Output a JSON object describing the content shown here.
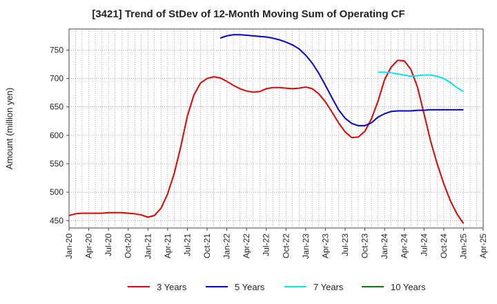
{
  "chart_data": {
    "type": "line",
    "title": "[3421]  Trend of StDev of 12-Month Moving Sum of Operating CF",
    "ylabel": "Amount (million yen)",
    "xlabel": "",
    "ylim": [
      437,
      787
    ],
    "yticks": [
      450,
      500,
      550,
      600,
      650,
      700,
      750
    ],
    "x_tick_labels": [
      "Jan-20",
      "Apr-20",
      "Jul-20",
      "Oct-20",
      "Jan-21",
      "Apr-21",
      "Jul-21",
      "Oct-21",
      "Jan-22",
      "Apr-22",
      "Jul-22",
      "Oct-22",
      "Jan-23",
      "Apr-23",
      "Jul-23",
      "Oct-23",
      "Jan-24",
      "Apr-24",
      "Jul-24",
      "Oct-24",
      "Jan-25",
      "Apr-25"
    ],
    "grid": true,
    "legend_position": "bottom",
    "series": [
      {
        "name": "3 Years",
        "color": "#e00000",
        "points": [
          [
            "Jan-20",
            459
          ],
          [
            "Feb-20",
            462
          ],
          [
            "Mar-20",
            463
          ],
          [
            "Apr-20",
            463
          ],
          [
            "May-20",
            463
          ],
          [
            "Jun-20",
            463
          ],
          [
            "Jul-20",
            464
          ],
          [
            "Aug-20",
            464
          ],
          [
            "Sep-20",
            464
          ],
          [
            "Oct-20",
            463
          ],
          [
            "Nov-20",
            462
          ],
          [
            "Dec-20",
            460
          ],
          [
            "Jan-21",
            456
          ],
          [
            "Feb-21",
            459
          ],
          [
            "Mar-21",
            472
          ],
          [
            "Apr-21",
            497
          ],
          [
            "May-21",
            533
          ],
          [
            "Jun-21",
            580
          ],
          [
            "Jul-21",
            634
          ],
          [
            "Aug-21",
            671
          ],
          [
            "Sep-21",
            692
          ],
          [
            "Oct-21",
            700
          ],
          [
            "Nov-21",
            703
          ],
          [
            "Dec-21",
            701
          ],
          [
            "Jan-22",
            695
          ],
          [
            "Feb-22",
            688
          ],
          [
            "Mar-22",
            682
          ],
          [
            "Apr-22",
            678
          ],
          [
            "May-22",
            676
          ],
          [
            "Jun-22",
            677
          ],
          [
            "Jul-22",
            682
          ],
          [
            "Aug-22",
            684
          ],
          [
            "Sep-22",
            684
          ],
          [
            "Oct-22",
            683
          ],
          [
            "Nov-22",
            682
          ],
          [
            "Dec-22",
            683
          ],
          [
            "Jan-23",
            685
          ],
          [
            "Feb-23",
            682
          ],
          [
            "Mar-23",
            673
          ],
          [
            "Apr-23",
            659
          ],
          [
            "May-23",
            641
          ],
          [
            "Jun-23",
            622
          ],
          [
            "Jul-23",
            606
          ],
          [
            "Aug-23",
            596
          ],
          [
            "Sep-23",
            597
          ],
          [
            "Oct-23",
            607
          ],
          [
            "Nov-23",
            629
          ],
          [
            "Dec-23",
            660
          ],
          [
            "Jan-24",
            698
          ],
          [
            "Feb-24",
            720
          ],
          [
            "Mar-24",
            732
          ],
          [
            "Apr-24",
            731
          ],
          [
            "May-24",
            716
          ],
          [
            "Jun-24",
            685
          ],
          [
            "Jul-24",
            638
          ],
          [
            "Aug-24",
            590
          ],
          [
            "Sep-24",
            550
          ],
          [
            "Oct-24",
            515
          ],
          [
            "Nov-24",
            485
          ],
          [
            "Dec-24",
            462
          ],
          [
            "Jan-25",
            445
          ]
        ]
      },
      {
        "name": "5 Years",
        "color": "#0000cc",
        "points": [
          [
            "Dec-21",
            771
          ],
          [
            "Jan-22",
            775
          ],
          [
            "Feb-22",
            777
          ],
          [
            "Mar-22",
            777
          ],
          [
            "Apr-22",
            776
          ],
          [
            "May-22",
            775
          ],
          [
            "Jun-22",
            774
          ],
          [
            "Jul-22",
            773
          ],
          [
            "Aug-22",
            771
          ],
          [
            "Sep-22",
            768
          ],
          [
            "Oct-22",
            764
          ],
          [
            "Nov-22",
            759
          ],
          [
            "Dec-22",
            752
          ],
          [
            "Jan-23",
            741
          ],
          [
            "Feb-23",
            727
          ],
          [
            "Mar-23",
            709
          ],
          [
            "Apr-23",
            688
          ],
          [
            "May-23",
            666
          ],
          [
            "Jun-23",
            645
          ],
          [
            "Jul-23",
            630
          ],
          [
            "Aug-23",
            621
          ],
          [
            "Sep-23",
            617
          ],
          [
            "Oct-23",
            617
          ],
          [
            "Nov-23",
            622
          ],
          [
            "Dec-23",
            632
          ],
          [
            "Jan-24",
            638
          ],
          [
            "Feb-24",
            642
          ],
          [
            "Mar-24",
            643
          ],
          [
            "Apr-24",
            643
          ],
          [
            "May-24",
            643
          ],
          [
            "Jun-24",
            644
          ],
          [
            "Jul-24",
            644
          ],
          [
            "Aug-24",
            645
          ],
          [
            "Sep-24",
            645
          ],
          [
            "Oct-24",
            645
          ],
          [
            "Nov-24",
            645
          ],
          [
            "Dec-24",
            645
          ],
          [
            "Jan-25",
            645
          ]
        ]
      },
      {
        "name": "7 Years",
        "color": "#00e5e5",
        "points": [
          [
            "Dec-23",
            711
          ],
          [
            "Jan-24",
            711
          ],
          [
            "Feb-24",
            710
          ],
          [
            "Mar-24",
            708
          ],
          [
            "Apr-24",
            706
          ],
          [
            "May-24",
            704
          ],
          [
            "Jun-24",
            705
          ],
          [
            "Jul-24",
            706
          ],
          [
            "Aug-24",
            706
          ],
          [
            "Sep-24",
            704
          ],
          [
            "Oct-24",
            700
          ],
          [
            "Nov-24",
            693
          ],
          [
            "Dec-24",
            684
          ],
          [
            "Jan-25",
            677
          ]
        ]
      },
      {
        "name": "10 Years",
        "color": "#008000",
        "points": []
      }
    ]
  }
}
